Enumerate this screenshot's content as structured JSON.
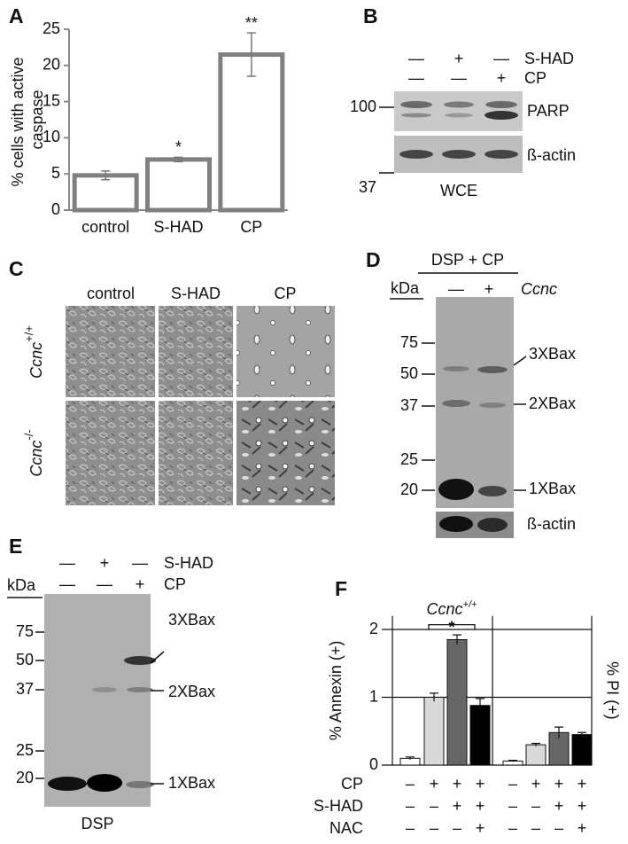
{
  "chart_data": [
    {
      "type": "bar",
      "panel": "A",
      "ylabel": "% cells with active caspase",
      "categories": [
        "control",
        "S-HAD",
        "CP"
      ],
      "values": [
        4.8,
        7.0,
        21.5
      ],
      "errors": [
        0.6,
        0.3,
        3.0
      ],
      "significance": [
        null,
        "*",
        "**"
      ],
      "color": "#ffffff",
      "edge_color": "#808080",
      "ylim": [
        0,
        25
      ],
      "yticks": [
        0,
        5,
        10,
        15,
        20,
        25
      ]
    },
    {
      "type": "grouped-bar",
      "panel": "F",
      "title": "Ccnc",
      "title_superscript": "+/+",
      "ylabel": "% Annexin (+)",
      "y2label": "% PI (+)",
      "ylim": [
        0,
        2.2
      ],
      "yticks": [
        0,
        1,
        2
      ],
      "y2lim": [
        0,
        2.2
      ],
      "grid": true,
      "colors": [
        "#ffffff",
        "#d9d9d9",
        "#666666",
        "#000000"
      ],
      "groups": [
        {
          "axis": "y",
          "values": [
            0.1,
            1.0,
            1.85,
            0.88
          ],
          "errors": [
            0.02,
            0.06,
            0.07,
            0.1
          ]
        },
        {
          "axis": "y2",
          "values": [
            0.06,
            0.3,
            0.48,
            0.45
          ],
          "errors": [
            0.01,
            0.02,
            0.08,
            0.03
          ]
        }
      ],
      "significance": "*",
      "conditions": [
        {
          "label": "CP",
          "signs": [
            "–",
            "+",
            "+",
            "+",
            "–",
            "+",
            "+",
            "+"
          ]
        },
        {
          "label": "S-HAD",
          "signs": [
            "–",
            "–",
            "+",
            "+",
            "–",
            "–",
            "+",
            "+"
          ]
        },
        {
          "label": "NAC",
          "signs": [
            "–",
            "–",
            "–",
            "+",
            "–",
            "–",
            "–",
            "+"
          ]
        }
      ]
    }
  ],
  "panel_b": {
    "label": "B",
    "rows": [
      {
        "signs": [
          "—",
          "+",
          "—"
        ],
        "label": "S-HAD"
      },
      {
        "signs": [
          "—",
          "—",
          "+"
        ],
        "label": "CP"
      }
    ],
    "markers": [
      100,
      37
    ],
    "bands": [
      "PARP",
      "ß-actin"
    ],
    "caption": "WCE"
  },
  "panel_c": {
    "label": "C",
    "columns": [
      "control",
      "S-HAD",
      "CP"
    ],
    "rows": [
      {
        "gene": "Ccnc",
        "genotype": "+/+"
      },
      {
        "gene": "Ccnc",
        "genotype": "-/-"
      }
    ]
  },
  "panel_d": {
    "label": "D",
    "treatment": "DSP + CP",
    "unit": "kDa",
    "signs": [
      "—",
      "+"
    ],
    "gene": "Ccnc",
    "markers": [
      75,
      50,
      37,
      25,
      20
    ],
    "bands": [
      "3XBax",
      "2XBax",
      "1XBax"
    ],
    "loading": "ß-actin"
  },
  "panel_e": {
    "label": "E",
    "rows": [
      {
        "signs": [
          "—",
          "+",
          "—"
        ],
        "label": "S-HAD"
      },
      {
        "signs": [
          "—",
          "—",
          "+"
        ],
        "label": "CP"
      }
    ],
    "unit": "kDa",
    "markers": [
      75,
      50,
      37,
      25,
      20
    ],
    "bands": [
      "3XBax",
      "2XBax",
      "1XBax"
    ],
    "caption": "DSP"
  }
}
